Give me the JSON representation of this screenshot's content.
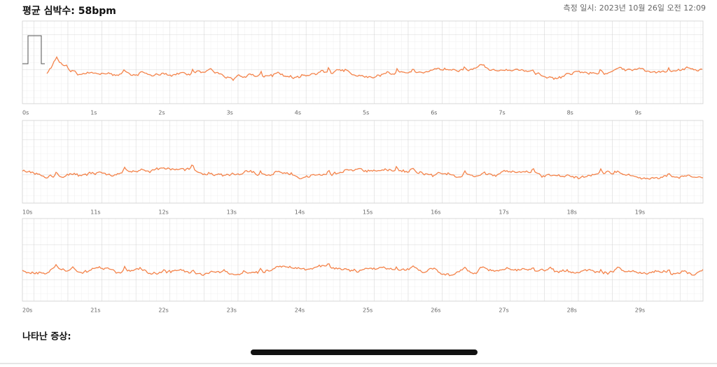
{
  "header": {
    "title": "평균 심박수: 58bpm",
    "measured_at": "측정 일시: 2023년 10월 26일 오전 12:09"
  },
  "strips": [
    {
      "time_labels": [
        "0s",
        "1s",
        "2s",
        "3s",
        "4s",
        "5s",
        "6s",
        "7s",
        "8s",
        "9s"
      ]
    },
    {
      "time_labels": [
        "10s",
        "11s",
        "12s",
        "13s",
        "14s",
        "15s",
        "16s",
        "17s",
        "18s",
        "19s"
      ]
    },
    {
      "time_labels": [
        "20s",
        "21s",
        "22s",
        "23s",
        "24s",
        "25s",
        "26s",
        "27s",
        "28s",
        "29s"
      ]
    }
  ],
  "symptoms_label": "나타난 증상:"
}
